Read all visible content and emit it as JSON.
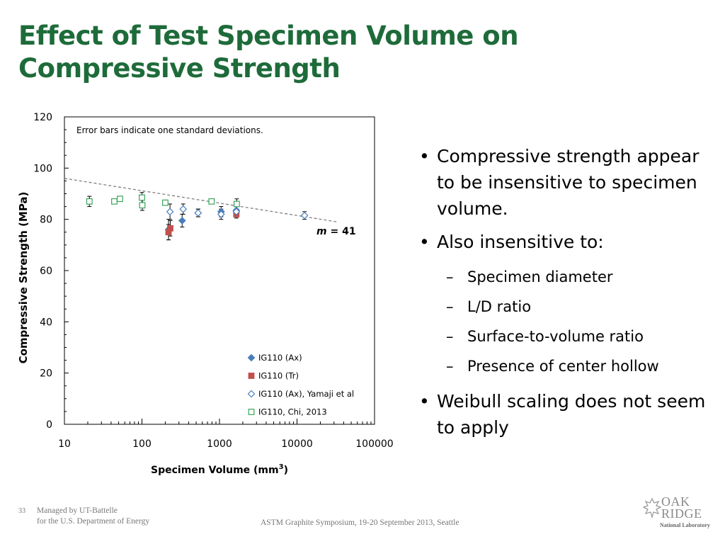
{
  "slide": {
    "title_line1": "Effect of Test Specimen Volume on",
    "title_line2": "Compressive Strength",
    "bullets": [
      {
        "text": "Compressive strength appear to be insensitive to specimen volume."
      },
      {
        "text": "Also insensitive to:",
        "subs": [
          "Specimen diameter",
          "L/D ratio",
          "Surface-to-volume ratio",
          "Presence of center hollow"
        ]
      },
      {
        "text": "Weibull scaling does not seem to apply"
      }
    ],
    "footer": {
      "page": "33",
      "managed_line1": "Managed by UT-Battelle",
      "managed_line2": "for the U.S. Department of Energy",
      "conference": "ASTM Graphite Symposium, 19-20 September 2013, Seattle"
    },
    "logo": {
      "line1": "OAK",
      "line2": "RIDGE",
      "sub": "National Laboratory"
    }
  },
  "colors": {
    "title": "#1e6b3a",
    "ax": "#4a7ebb",
    "tr": "#c0504d",
    "yamaji": "#4a7ebb",
    "chi": "#3aa35a",
    "trend": "#7f7f7f"
  },
  "chart_data": {
    "type": "scatter",
    "xscale": "log",
    "xlim": [
      10,
      100000
    ],
    "ylim": [
      0,
      120
    ],
    "xticks": [
      "10",
      "100",
      "1000",
      "10000",
      "100000"
    ],
    "yticks": [
      "0",
      "20",
      "40",
      "60",
      "80",
      "100",
      "120"
    ],
    "xlabel": "Specimen Volume (mm",
    "xlabel_sup": "3",
    "xlabel_end": ")",
    "ylabel": "Compressive Strength (MPa)",
    "annotation": "Error bars indicate one standard deviations.",
    "trend_label_italic": "m",
    "trend_label_rest": " = 41",
    "trend": {
      "x": [
        10,
        33000
      ],
      "y": [
        96,
        79
      ]
    },
    "legend_position": "bottom-right",
    "series": [
      {
        "name": "IG110 (Ax)",
        "marker": "diamond-filled",
        "x": [
          220,
          330,
          530,
          1050,
          1650
        ],
        "y": [
          76,
          79.5,
          82.5,
          83,
          83.5
        ],
        "err": [
          4,
          2.5,
          1.5,
          2,
          2
        ]
      },
      {
        "name": "IG110 (Tr)",
        "marker": "square-filled",
        "x": [
          220,
          232,
          1650
        ],
        "y": [
          75,
          76.5,
          82
        ],
        "err": [
          3,
          3,
          1.5
        ]
      },
      {
        "name": "IG110 (Ax), Yamaji et al",
        "marker": "diamond-open",
        "x": [
          230,
          340,
          530,
          1050,
          1650,
          12500
        ],
        "y": [
          83,
          84,
          82.5,
          82,
          83,
          81.5
        ],
        "err": [
          3,
          2,
          1.5,
          2,
          2,
          1.5
        ]
      },
      {
        "name": "IG110, Chi, 2013",
        "marker": "square-open",
        "x": [
          21,
          44,
          52,
          100,
          101,
          200,
          790,
          1670
        ],
        "y": [
          87,
          87,
          88,
          88.5,
          85.5,
          86.5,
          87,
          86
        ],
        "err": [
          2,
          1,
          1,
          2,
          2,
          1,
          1,
          2
        ]
      }
    ]
  }
}
